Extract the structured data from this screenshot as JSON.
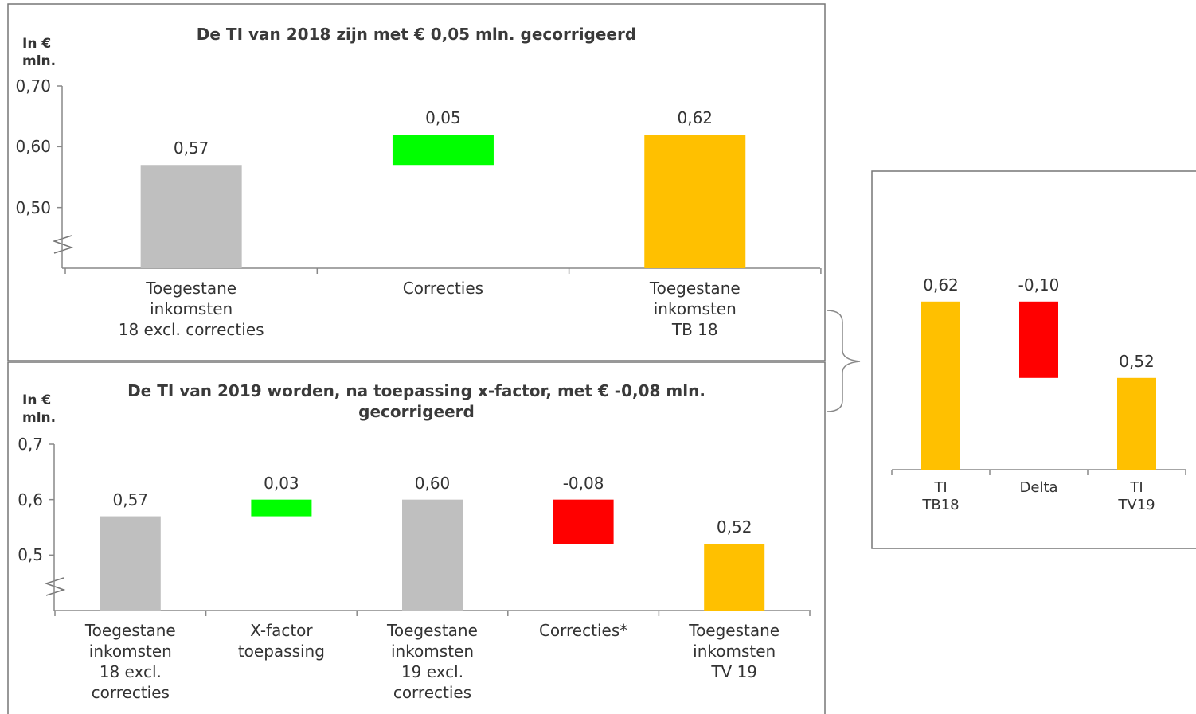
{
  "chart_data": [
    {
      "type": "waterfall",
      "title": "De TI van 2018 zijn met € 0,05 mln. gecorrigeerd",
      "y_label": "In € mln.",
      "categories": [
        "Toegestane\ninkomsten\n18 excl. correcties",
        "Correcties",
        "Toegestane\ninkomsten\nTB 18"
      ],
      "values": [
        0.57,
        0.05,
        0.62
      ],
      "value_labels": [
        "0,57",
        "0,05",
        "0,62"
      ],
      "measures": [
        "absolute",
        "relative",
        "total"
      ],
      "colors": [
        "#bfbfbf",
        "#00ff00",
        "#ffc000"
      ],
      "ylim": [
        0.4,
        0.7
      ],
      "yticks": [
        {
          "value": 0.7,
          "label": "0,70"
        },
        {
          "value": 0.6,
          "label": "0,60"
        },
        {
          "value": 0.5,
          "label": "0,50"
        }
      ]
    },
    {
      "type": "waterfall",
      "title": "De TI van 2019 worden, na toepassing x-factor, met € -0,08 mln. gecorrigeerd",
      "y_label": "In € mln.",
      "categories": [
        "Toegestane\ninkomsten\n18 excl.\ncorrecties",
        "X-factor\ntoepassing",
        "Toegestane\ninkomsten\n19 excl.\ncorrecties",
        "Correcties*",
        "Toegestane\ninkomsten\nTV 19"
      ],
      "values": [
        0.57,
        0.03,
        0.6,
        -0.08,
        0.52
      ],
      "value_labels": [
        "0,57",
        "0,03",
        "0,60",
        "-0,08",
        "0,52"
      ],
      "measures": [
        "absolute",
        "relative",
        "total",
        "relative",
        "total"
      ],
      "colors": [
        "#bfbfbf",
        "#00ff00",
        "#bfbfbf",
        "#ff0000",
        "#ffc000"
      ],
      "ylim": [
        0.4,
        0.7
      ],
      "yticks": [
        {
          "value": 0.7,
          "label": "0,7"
        },
        {
          "value": 0.6,
          "label": "0,6"
        },
        {
          "value": 0.5,
          "label": "0,5"
        }
      ]
    },
    {
      "type": "waterfall",
      "categories": [
        "TI\nTB18",
        "Delta",
        "TI\nTV19"
      ],
      "values": [
        0.62,
        -0.1,
        0.52
      ],
      "value_labels": [
        "0,62",
        "-0,10",
        "0,52"
      ],
      "measures": [
        "absolute",
        "relative",
        "total"
      ],
      "colors": [
        "#ffc000",
        "#ff0000",
        "#ffc000"
      ],
      "ylim": [
        0.4,
        0.65
      ]
    }
  ]
}
